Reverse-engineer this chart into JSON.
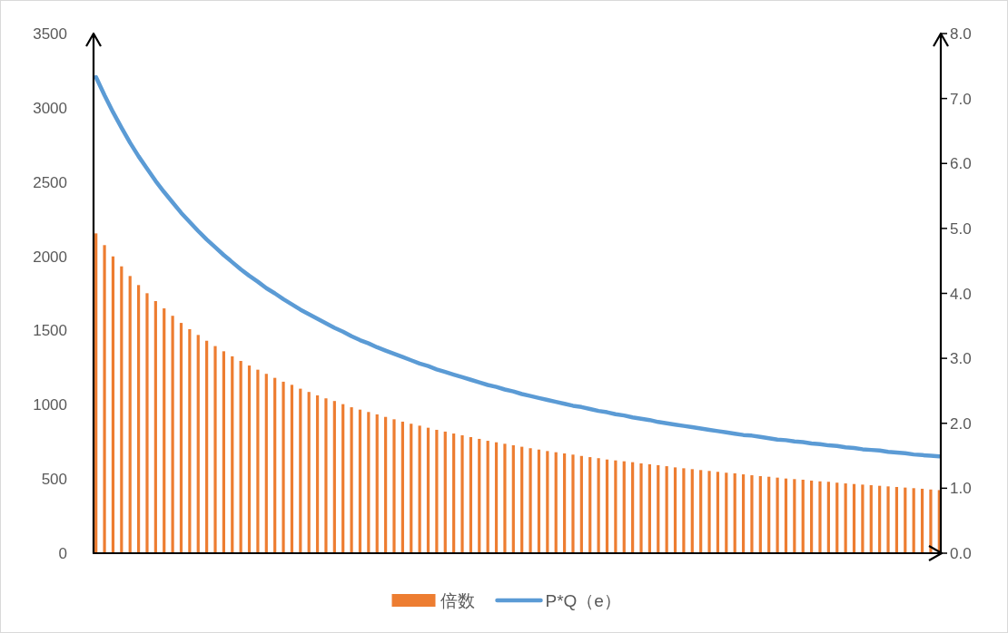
{
  "chart_data": {
    "type": "bar",
    "categories": [
      null,
      null,
      null,
      null,
      null,
      null,
      null,
      null,
      null,
      null,
      null,
      null,
      null,
      null,
      null,
      null,
      null,
      null,
      null,
      null,
      null,
      null,
      null,
      null,
      null,
      null,
      null,
      null,
      null,
      null,
      null,
      null,
      null,
      null,
      null,
      null,
      null,
      null,
      null,
      null,
      null,
      null,
      null,
      null,
      null,
      null,
      null,
      null,
      null,
      null,
      null,
      null,
      null,
      null,
      null,
      null,
      null,
      null,
      null,
      null,
      null,
      null,
      null,
      null,
      null,
      null,
      null,
      null,
      null,
      null,
      null,
      null,
      null,
      null,
      null,
      null,
      null,
      null,
      null,
      null,
      null,
      null,
      null,
      null,
      null,
      null,
      null,
      null,
      null,
      null,
      null,
      null,
      null,
      null,
      null,
      null,
      null,
      null,
      null,
      null
    ],
    "series": [
      {
        "name": "倍数",
        "color": "#ed7d31",
        "values": [
          2154,
          2075,
          1999,
          1932,
          1867,
          1806,
          1751,
          1698,
          1649,
          1599,
          1551,
          1509,
          1470,
          1431,
          1395,
          1360,
          1326,
          1295,
          1264,
          1236,
          1208,
          1181,
          1155,
          1134,
          1108,
          1086,
          1063,
          1043,
          1025,
          1004,
          983,
          967,
          951,
          935,
          918,
          902,
          886,
          872,
          859,
          845,
          831,
          819,
          806,
          794,
          782,
          770,
          757,
          747,
          737,
          727,
          717,
          707,
          698,
          688,
          680,
          672,
          664,
          655,
          647,
          640,
          631,
          625,
          619,
          613,
          605,
          599,
          593,
          586,
          578,
          572,
          566,
          560,
          554,
          548,
          542,
          538,
          531,
          525,
          519,
          515,
          509,
          503,
          499,
          495,
          489,
          484,
          481,
          475,
          470,
          466,
          462,
          458,
          454,
          450,
          446,
          442,
          438,
          434,
          429,
          425
        ]
      },
      {
        "name": "P*Q（e）",
        "type": "line",
        "axis": "y2",
        "color": "#5b9bd5",
        "values": [
          7.33,
          7.05,
          6.79,
          6.55,
          6.32,
          6.11,
          5.92,
          5.73,
          5.56,
          5.4,
          5.24,
          5.1,
          4.96,
          4.83,
          4.71,
          4.59,
          4.48,
          4.37,
          4.27,
          4.18,
          4.08,
          4.0,
          3.91,
          3.83,
          3.75,
          3.68,
          3.61,
          3.54,
          3.47,
          3.41,
          3.34,
          3.28,
          3.23,
          3.17,
          3.12,
          3.07,
          3.02,
          2.97,
          2.92,
          2.88,
          2.83,
          2.79,
          2.75,
          2.71,
          2.67,
          2.63,
          2.59,
          2.56,
          2.52,
          2.49,
          2.45,
          2.42,
          2.39,
          2.36,
          2.33,
          2.3,
          2.27,
          2.25,
          2.22,
          2.19,
          2.17,
          2.14,
          2.12,
          2.09,
          2.07,
          2.05,
          2.02,
          2.0,
          1.98,
          1.96,
          1.94,
          1.92,
          1.9,
          1.88,
          1.86,
          1.84,
          1.82,
          1.81,
          1.79,
          1.77,
          1.75,
          1.74,
          1.72,
          1.71,
          1.69,
          1.68,
          1.66,
          1.65,
          1.63,
          1.62,
          1.6,
          1.59,
          1.58,
          1.56,
          1.55,
          1.54,
          1.52,
          1.51,
          1.5,
          1.49
        ]
      }
    ],
    "ylim": [
      0,
      3500
    ],
    "yticks": [
      0,
      500,
      1000,
      1500,
      2000,
      2500,
      3000,
      3500
    ],
    "y2lim": [
      0,
      8
    ],
    "y2ticks": [
      {
        "value": 0,
        "label": "0.0"
      },
      {
        "value": 1,
        "label": "1.0"
      },
      {
        "value": 2,
        "label": "2.0"
      },
      {
        "value": 3,
        "label": "3.0"
      },
      {
        "value": 4,
        "label": "4.0"
      },
      {
        "value": 5,
        "label": "5.0"
      },
      {
        "value": 6,
        "label": "6.0"
      },
      {
        "value": 7,
        "label": "7.0"
      },
      {
        "value": 8,
        "label": "8.0"
      }
    ],
    "legend": "bottom"
  }
}
